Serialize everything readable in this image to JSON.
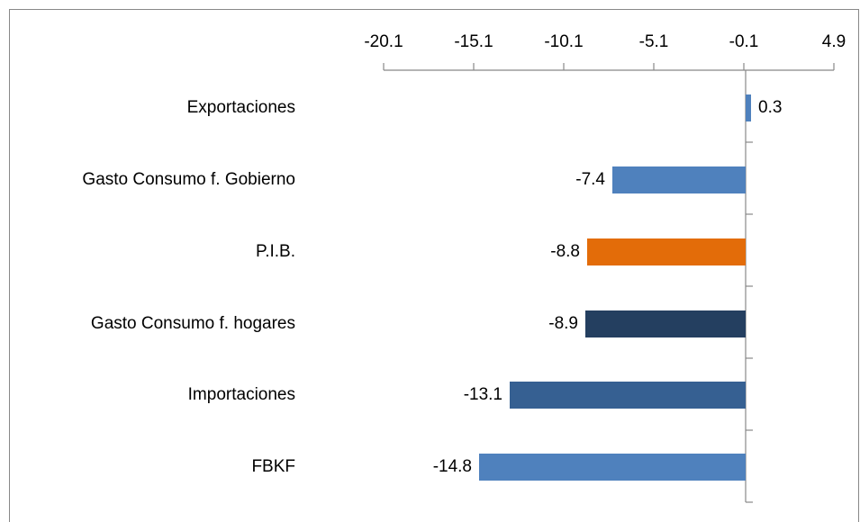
{
  "chart_data": {
    "type": "bar",
    "orientation": "horizontal",
    "categories": [
      "Exportaciones",
      "Gasto Consumo f. Gobierno",
      "P.I.B.",
      "Gasto Consumo f. hogares",
      "Importaciones",
      "FBKF"
    ],
    "values": [
      0.3,
      -7.4,
      -8.8,
      -8.9,
      -13.1,
      -14.8
    ],
    "colors": [
      "#4f81bd",
      "#4f81bd",
      "#e36c09",
      "#243f60",
      "#366092",
      "#4f81bd"
    ],
    "xlim": [
      -20.1,
      4.9
    ],
    "xticks": [
      -20.1,
      -15.1,
      -10.1,
      -5.1,
      -0.1,
      4.9
    ],
    "axis_position": "top"
  }
}
